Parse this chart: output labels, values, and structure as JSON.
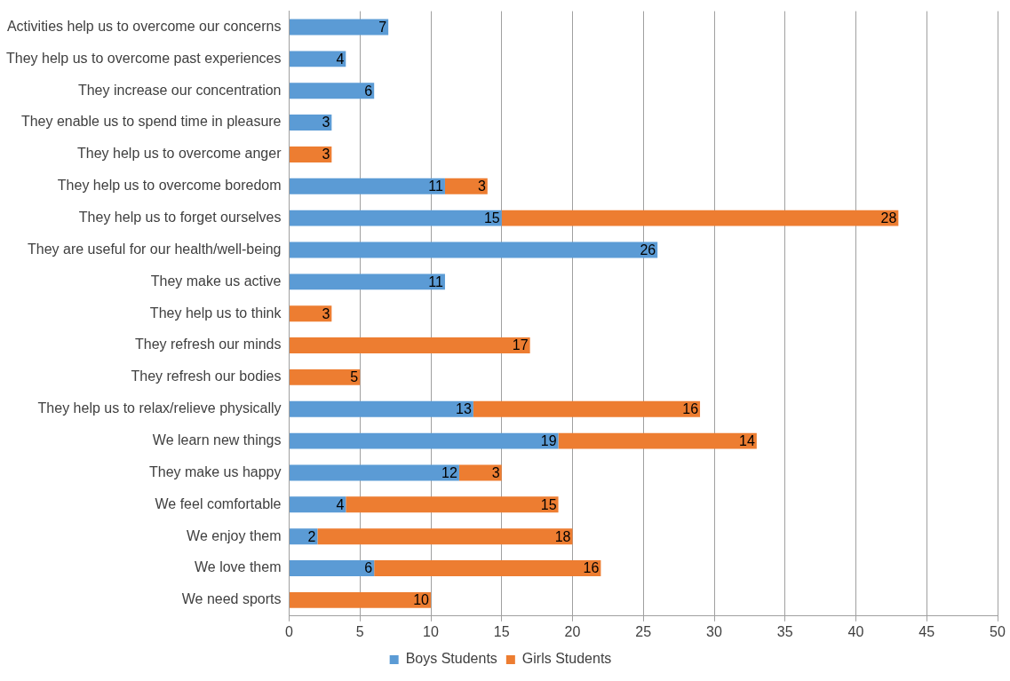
{
  "chart_data": {
    "type": "bar",
    "orientation": "horizontal",
    "stacked": true,
    "categories": [
      "Activities help us to overcome our concerns",
      "They help us to overcome past experiences",
      "They increase our concentration",
      "They enable us to spend time in pleasure",
      "They help us to overcome anger",
      "They help us to overcome boredom",
      "They help us to forget ourselves",
      "They are useful for our health/well-being",
      "They make us active",
      "They help us to think",
      "They refresh our minds",
      "They refresh our bodies",
      "They help us to relax/relieve physically",
      "We learn new things",
      "They make us happy",
      "We feel comfortable",
      "We enjoy them",
      "We love them",
      "We need sports"
    ],
    "series": [
      {
        "name": "Boys Students",
        "color": "#5b9bd5",
        "values": [
          7,
          4,
          6,
          3,
          null,
          11,
          15,
          26,
          11,
          null,
          null,
          null,
          13,
          19,
          12,
          4,
          2,
          6,
          null
        ]
      },
      {
        "name": "Girls Students",
        "color": "#ed7d31",
        "values": [
          null,
          null,
          null,
          null,
          3,
          3,
          28,
          null,
          null,
          3,
          17,
          5,
          16,
          14,
          3,
          15,
          18,
          16,
          10
        ]
      }
    ],
    "xlim": [
      0,
      50
    ],
    "xticks": [
      0,
      5,
      10,
      15,
      20,
      25,
      30,
      35,
      40,
      45,
      50
    ],
    "grid": "x",
    "legend": "bottom",
    "data_labels": true
  }
}
